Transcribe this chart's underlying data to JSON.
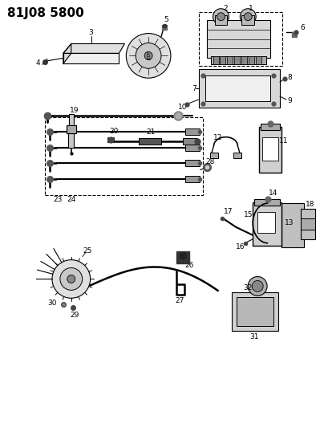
{
  "title": "81J08 5800",
  "title_fontsize": 11,
  "title_fontweight": "bold",
  "background_color": "#ffffff",
  "line_color": "#000000",
  "label_fontsize": 6.5
}
